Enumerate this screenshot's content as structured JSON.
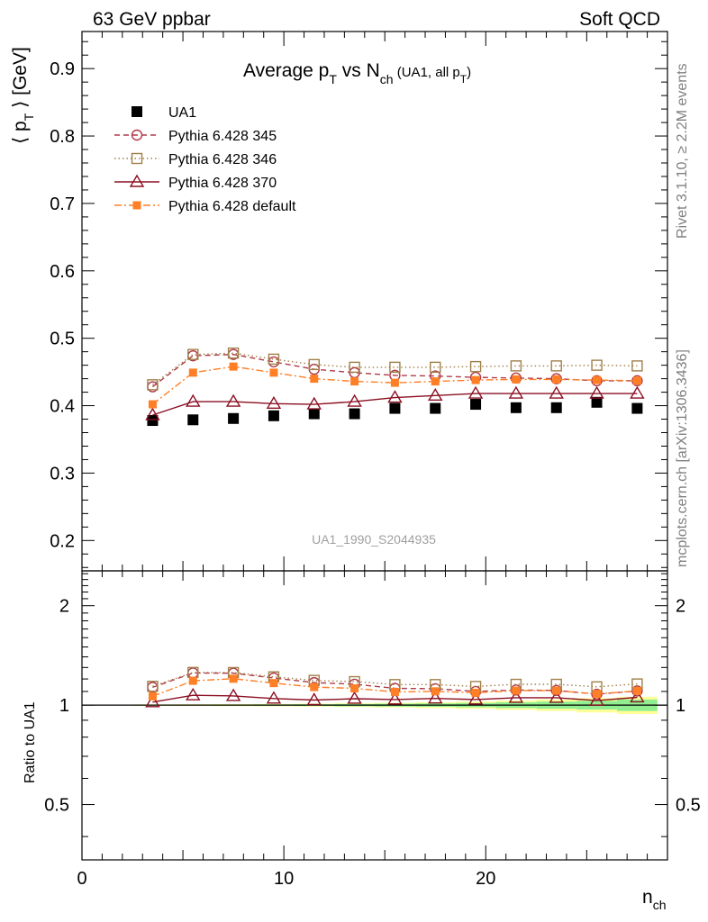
{
  "header": {
    "left": "63 GeV ppbar",
    "right": "Soft QCD"
  },
  "side_labels": {
    "rivet": "Rivet 3.1.10, ≥ 2.2M events",
    "mcplots": "mcplots.cern.ch [arXiv:1306.3436]"
  },
  "watermark": "UA1_1990_S2044935",
  "colors": {
    "data": "#000000",
    "p345": "#b03a48",
    "p346": "#a0804a",
    "p370": "#8b0f22",
    "pdef": "#ff7f27",
    "band_green": "#90ee90",
    "band_yellow": "#ffff99"
  },
  "chart_data": [
    {
      "type": "scatter",
      "title": {
        "main": "Average p",
        "sub1": "T",
        "mid": " vs N",
        "sub2": "ch",
        "tail": " (UA1, all p",
        "sub3": "T",
        "end": ")"
      },
      "ylabel": {
        "pre": "⟨ p",
        "sub": "T",
        "post": " ⟩ [GeV]"
      },
      "ylim": [
        0.155,
        0.955
      ],
      "xlim": [
        0,
        29
      ],
      "ytick_labels": [
        "0.2",
        "0.3",
        "0.4",
        "0.5",
        "0.6",
        "0.7",
        "0.8",
        "0.9"
      ],
      "legend_placement": "top-left",
      "x": [
        3.5,
        5.5,
        7.5,
        9.5,
        11.5,
        13.5,
        15.5,
        17.5,
        19.5,
        21.5,
        23.5,
        25.5,
        27.5
      ],
      "series": [
        {
          "name": "UA1",
          "key": "data",
          "marker": "filled-square",
          "line": "none",
          "values": [
            0.378,
            0.379,
            0.381,
            0.385,
            0.388,
            0.388,
            0.396,
            0.396,
            0.402,
            0.397,
            0.397,
            0.405,
            0.396
          ]
        },
        {
          "name": "Pythia 6.428 345",
          "key": "p345",
          "marker": "open-circle",
          "line": "dashed",
          "values": [
            0.428,
            0.474,
            0.476,
            0.465,
            0.454,
            0.449,
            0.445,
            0.444,
            0.442,
            0.441,
            0.44,
            0.437,
            0.437
          ]
        },
        {
          "name": "Pythia 6.428 346",
          "key": "p346",
          "marker": "open-square",
          "line": "dotted",
          "values": [
            0.431,
            0.476,
            0.478,
            0.469,
            0.461,
            0.457,
            0.457,
            0.457,
            0.458,
            0.459,
            0.459,
            0.46,
            0.459
          ]
        },
        {
          "name": "Pythia 6.428 370",
          "key": "p370",
          "marker": "open-triangle",
          "line": "solid",
          "values": [
            0.386,
            0.406,
            0.406,
            0.403,
            0.402,
            0.406,
            0.412,
            0.415,
            0.418,
            0.418,
            0.418,
            0.418,
            0.418
          ]
        },
        {
          "name": "Pythia 6.428 default",
          "key": "pdef",
          "marker": "small-filled-square",
          "line": "dashdot",
          "values": [
            0.402,
            0.449,
            0.458,
            0.449,
            0.44,
            0.436,
            0.434,
            0.436,
            0.438,
            0.439,
            0.439,
            0.438,
            0.437
          ]
        }
      ]
    },
    {
      "type": "scatter",
      "ylabel": "Ratio to UA1",
      "xlabel": {
        "main": "n",
        "sub": "ch"
      },
      "ylim": [
        0.34,
        2.55
      ],
      "xlim": [
        0,
        29
      ],
      "y_scale": "log",
      "ytick_labels": [
        "0.5",
        "1",
        "2"
      ],
      "xtick_labels": [
        "0",
        "10",
        "20"
      ],
      "x": [
        3.5,
        5.5,
        7.5,
        9.5,
        11.5,
        13.5,
        15.5,
        17.5,
        19.5,
        21.5,
        23.5,
        25.5,
        27.5
      ],
      "band_halfwidth_green": [
        0.003,
        0.003,
        0.004,
        0.005,
        0.006,
        0.008,
        0.01,
        0.012,
        0.015,
        0.02,
        0.025,
        0.03,
        0.04
      ],
      "band_halfwidth_yellow": [
        0.005,
        0.006,
        0.007,
        0.008,
        0.01,
        0.013,
        0.016,
        0.02,
        0.025,
        0.032,
        0.04,
        0.05,
        0.06
      ],
      "series": [
        {
          "key": "p345",
          "values": [
            1.132,
            1.251,
            1.249,
            1.208,
            1.17,
            1.157,
            1.124,
            1.121,
            1.1,
            1.111,
            1.108,
            1.079,
            1.104
          ]
        },
        {
          "key": "p346",
          "values": [
            1.14,
            1.256,
            1.255,
            1.218,
            1.188,
            1.178,
            1.154,
            1.154,
            1.139,
            1.156,
            1.156,
            1.136,
            1.159
          ]
        },
        {
          "key": "p370",
          "values": [
            1.021,
            1.071,
            1.066,
            1.047,
            1.036,
            1.046,
            1.04,
            1.048,
            1.04,
            1.053,
            1.053,
            1.032,
            1.056
          ]
        },
        {
          "key": "pdef",
          "values": [
            1.063,
            1.185,
            1.202,
            1.166,
            1.134,
            1.124,
            1.096,
            1.101,
            1.09,
            1.106,
            1.106,
            1.081,
            1.104
          ]
        }
      ]
    }
  ]
}
